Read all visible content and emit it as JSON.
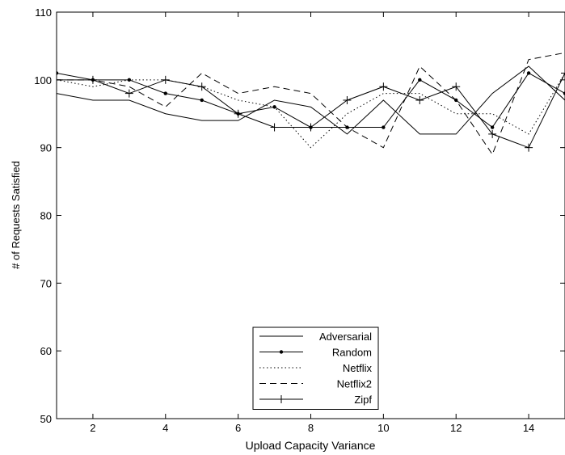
{
  "chart_data": {
    "type": "line",
    "title": "",
    "xlabel": "Upload Capacity Variance",
    "ylabel": "# of Requests Satisfied",
    "xlim": [
      1,
      15
    ],
    "ylim": [
      50,
      110
    ],
    "x_ticks": [
      2,
      4,
      6,
      8,
      10,
      12,
      14
    ],
    "y_ticks": [
      50,
      60,
      70,
      80,
      90,
      100,
      110
    ],
    "grid": false,
    "legend_position": "bottom-center",
    "x": [
      1,
      2,
      3,
      4,
      5,
      6,
      7,
      8,
      9,
      10,
      11,
      12,
      13,
      14,
      15
    ],
    "series": [
      {
        "name": "Adversarial",
        "style": "solid",
        "marker": "none",
        "values": [
          98,
          97,
          97,
          95,
          94,
          94,
          97,
          96,
          92,
          97,
          92,
          92,
          98,
          102,
          97
        ]
      },
      {
        "name": "Random",
        "style": "solid",
        "marker": "dot",
        "values": [
          101,
          100,
          100,
          98,
          97,
          95,
          96,
          93,
          93,
          93,
          100,
          97,
          93,
          101,
          98
        ]
      },
      {
        "name": "Netflix",
        "style": "dotted",
        "marker": "none",
        "values": [
          100,
          99,
          100,
          100,
          99,
          97,
          96,
          90,
          95,
          98,
          98,
          95,
          95,
          92,
          101
        ]
      },
      {
        "name": "Netflix2",
        "style": "dashed",
        "marker": "none",
        "values": [
          100,
          100,
          99,
          96,
          101,
          98,
          99,
          98,
          93,
          90,
          102,
          97,
          89,
          103,
          104
        ]
      },
      {
        "name": "Zipf",
        "style": "solid",
        "marker": "plus",
        "values": [
          100,
          100,
          98,
          100,
          99,
          95,
          93,
          93,
          97,
          99,
          97,
          99,
          92,
          90,
          101
        ]
      }
    ]
  }
}
